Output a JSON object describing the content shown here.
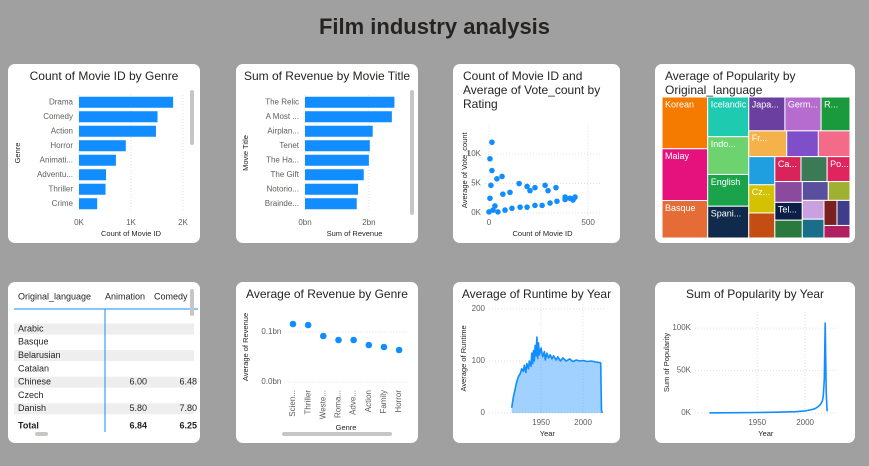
{
  "title": "Film industry analysis",
  "chart_data": [
    {
      "type": "bar",
      "orientation": "horizontal",
      "title": "Count of Movie ID by Genre",
      "categories": [
        "Drama",
        "Comedy",
        "Action",
        "Horror",
        "Animati...",
        "Adventu...",
        "Thriller",
        "Crime"
      ],
      "values": [
        1810,
        1510,
        1480,
        900,
        710,
        520,
        510,
        350
      ],
      "color": "#118dff",
      "xlim": [
        0,
        2000
      ],
      "xticks": [
        {
          "value": 0,
          "label": "0K"
        },
        {
          "value": 1000,
          "label": "1K"
        },
        {
          "value": 2000,
          "label": "2K"
        }
      ],
      "x_label": "Count of Movie ID",
      "y_label": "Genre",
      "grid": true
    },
    {
      "type": "bar",
      "orientation": "horizontal",
      "title": "Sum of Revenue by Movie Title",
      "categories": [
        "The Relic",
        "A Most ...",
        "Airplan...",
        "Tenet",
        "The Ha...",
        "The Gift",
        "Notorio...",
        "Brainde..."
      ],
      "values": [
        2.8,
        2.72,
        2.12,
        2.03,
        2.0,
        1.84,
        1.66,
        1.62
      ],
      "color": "#118dff",
      "xlim": [
        0,
        3.1
      ],
      "xticks": [
        {
          "value": 0,
          "label": "0bn"
        },
        {
          "value": 2,
          "label": "2bn"
        }
      ],
      "x_label": "Sum of Revenue",
      "y_label": "Movie Title",
      "grid": true
    },
    {
      "type": "scatter",
      "title": "Count of Movie ID and Average of Vote_count by Rating",
      "x": [
        15,
        5,
        15,
        10,
        40,
        66,
        5,
        30,
        70,
        106,
        152,
        192,
        207,
        232,
        283,
        298,
        338,
        384,
        424,
        45,
        81,
        116,
        157,
        192,
        232,
        268,
        308,
        343,
        384,
        409,
        434,
        20,
        0
      ],
      "values": [
        12000,
        9200,
        7200,
        4700,
        5800,
        6200,
        2500,
        1200,
        3200,
        3500,
        5000,
        4500,
        3800,
        4300,
        4700,
        3800,
        4300,
        2700,
        2200,
        200,
        500,
        800,
        1000,
        1000,
        1300,
        1300,
        1700,
        2000,
        2300,
        2500,
        2700,
        500,
        200
      ],
      "color": "#118dff",
      "xlim": [
        -20,
        560
      ],
      "xticks": [
        0,
        500
      ],
      "ylim": [
        -500,
        15000
      ],
      "yticks": [
        {
          "value": 0,
          "label": "0K"
        },
        {
          "value": 5000,
          "label": "5K"
        },
        {
          "value": 10000,
          "label": "10K"
        }
      ],
      "x_label": "Count of Movie ID",
      "y_label": "Average of Vote_count",
      "grid": true
    },
    {
      "type": "treemap",
      "title": "Average of Popularity by Original_language",
      "categories": [
        "Korean",
        "Malay",
        "Basque",
        "Icelandic",
        "Indo...",
        "English",
        "Spani...",
        "Japa...",
        "Germ...",
        "R...",
        "Fr...",
        null,
        null,
        null,
        "Cz...",
        null,
        "Ca...",
        null,
        "Po...",
        null,
        "Tel...",
        null,
        null,
        null,
        null,
        null,
        null,
        null,
        null
      ],
      "values": [
        29,
        29,
        21,
        20,
        19,
        16,
        16,
        15,
        15,
        12,
        12,
        10,
        10,
        9,
        9,
        8,
        8,
        8,
        7,
        7,
        6,
        6,
        6,
        5,
        5,
        5,
        4,
        4,
        4
      ],
      "colors": [
        "#f57a00",
        "#e5127d",
        "#e66c37",
        "#1ecab0",
        "#6dd36e",
        "#1aa34a",
        "#0f2a4a",
        "#6b3fa0",
        "#b66ccf",
        "#1a9a3d",
        "#f5b24a",
        "#7f4fc9",
        "#f46b8a",
        "#1f9fe0",
        "#d4c100",
        "#c44e12",
        "#d9235a",
        "#3b7a57",
        "#e0245e",
        "#8a4b9e",
        "#0b1e45",
        "#2b7a3d",
        "#5a4f9e",
        "#a0b030",
        "#c9a0e0",
        "#1a6e8a",
        "#7a2020",
        "#3d3d8a",
        "#b02060"
      ]
    },
    {
      "type": "dot",
      "title": "Average of Revenue by Genre",
      "categories": [
        "Scien...",
        "Thriller",
        "Weste...",
        "Roma...",
        "Adve...",
        "Action",
        "Family",
        "Horror"
      ],
      "values": [
        0.116,
        0.114,
        0.092,
        0.084,
        0.084,
        0.074,
        0.07,
        0.064
      ],
      "color": "#118dff",
      "ylim": [
        0,
        0.14
      ],
      "yticks": [
        {
          "value": 0,
          "label": "0.0bn"
        },
        {
          "value": 0.1,
          "label": "0.1bn"
        }
      ],
      "x_label": "Genre",
      "y_label": "Average of Revenue",
      "grid": true
    },
    {
      "type": "area",
      "title": "Average of Runtime by Year",
      "x": [
        1915,
        1917,
        1919,
        1921,
        1923,
        1925,
        1927,
        1929,
        1930,
        1932,
        1933,
        1935,
        1936,
        1938,
        1939,
        1940,
        1941,
        1942,
        1943,
        1944,
        1945,
        1946,
        1947,
        1948,
        1950,
        1952,
        1954,
        1955,
        1957,
        1959,
        1961,
        1963,
        1965,
        1968,
        1970,
        1973,
        1976,
        1980,
        1984,
        1988,
        1992,
        1996,
        2000,
        2005,
        2010,
        2015,
        2020,
        2021,
        2022,
        2023
      ],
      "values": [
        10,
        30,
        45,
        60,
        70,
        75,
        85,
        80,
        92,
        78,
        95,
        85,
        100,
        90,
        115,
        95,
        120,
        100,
        130,
        110,
        146,
        105,
        135,
        112,
        125,
        108,
        118,
        102,
        115,
        106,
        112,
        104,
        110,
        102,
        108,
        100,
        106,
        100,
        104,
        99,
        102,
        100,
        101,
        99,
        100,
        98,
        97,
        96,
        5,
        0
      ],
      "color": "#118dff",
      "xlim": [
        1888,
        2027
      ],
      "xticks": [
        1950,
        2000
      ],
      "ylim": [
        0,
        210
      ],
      "yticks": [
        0,
        100,
        200
      ],
      "x_label": "Year",
      "y_label": "Average of Runtime",
      "grid": true
    },
    {
      "type": "line",
      "title": "Sum of Popularity by Year",
      "x": [
        1900,
        1910,
        1930,
        1950,
        1970,
        1990,
        2000,
        2005,
        2010,
        2013,
        2016,
        2018,
        2019,
        2020,
        2021,
        2022,
        2023
      ],
      "values": [
        150,
        200,
        400,
        600,
        900,
        1500,
        2500,
        3500,
        5000,
        7000,
        10000,
        14000,
        20000,
        40000,
        106000,
        25000,
        2000
      ],
      "color": "#118dff",
      "xlim": [
        1885,
        2033
      ],
      "xticks": [
        1950,
        2000
      ],
      "ylim": [
        0,
        119000
      ],
      "yticks": [
        {
          "value": 0,
          "label": "0K"
        },
        {
          "value": 50000,
          "label": "50K"
        },
        {
          "value": 100000,
          "label": "100K"
        }
      ],
      "x_label": "Year",
      "y_label": "Sum of Popularity",
      "grid": true
    }
  ],
  "table": {
    "columns": [
      "Original_language",
      "Animation",
      "Comedy"
    ],
    "rows": [
      [
        "Arabic",
        null,
        null
      ],
      [
        "Basque",
        null,
        null
      ],
      [
        "Belarusian",
        null,
        null
      ],
      [
        "Catalan",
        null,
        null
      ],
      [
        "Chinese",
        "6.00",
        "6.48"
      ],
      [
        "Czech",
        null,
        null
      ],
      [
        "Danish",
        "5.80",
        "7.80"
      ]
    ],
    "total": [
      "Total",
      "6.84",
      "6.25"
    ]
  }
}
